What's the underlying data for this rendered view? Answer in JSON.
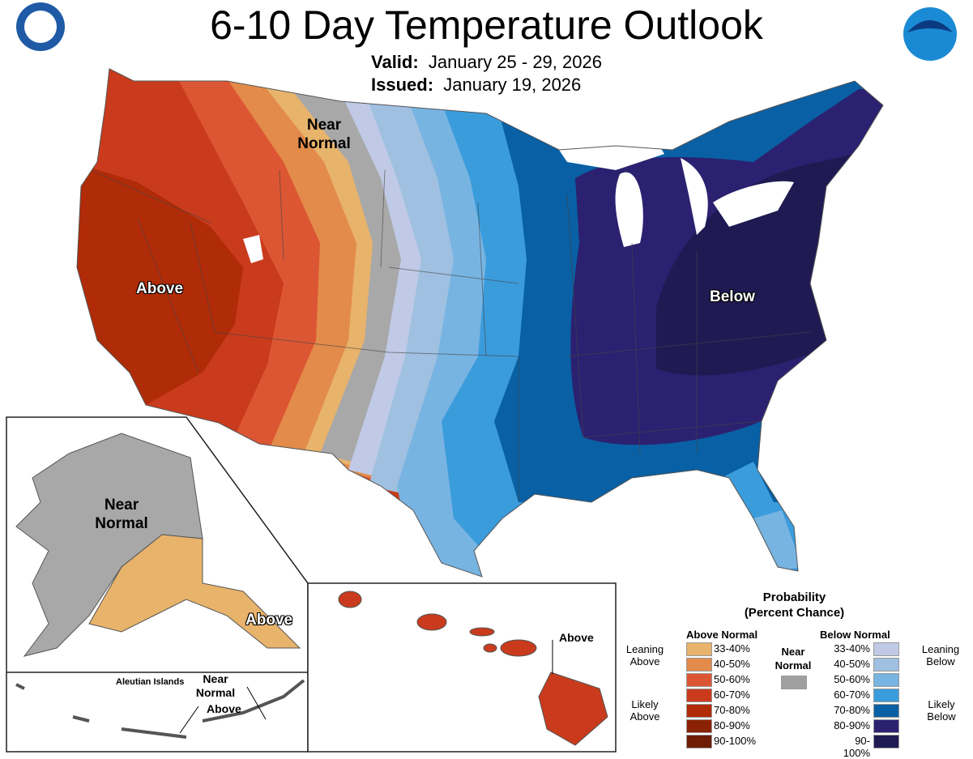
{
  "header": {
    "title": "6-10 Day Temperature Outlook",
    "valid_label": "Valid:",
    "valid_value": "January 25 - 29, 2026",
    "issued_label": "Issued:",
    "issued_value": "January 19, 2026"
  },
  "logos": {
    "left": "Department of Commerce seal",
    "right": "NOAA"
  },
  "map_labels": {
    "near_normal": "Near Normal",
    "above": "Above",
    "below": "Below",
    "alaska_near_normal": "Near Normal",
    "alaska_above": "Above",
    "aleutian": "Aleutian Islands",
    "aleutian_near": "Near Normal",
    "aleutian_above": "Above",
    "hawaii_above": "Above"
  },
  "legend": {
    "title1": "Probability",
    "title2": "(Percent Chance)",
    "above_header": "Above Normal",
    "below_header": "Below Normal",
    "near_header": "Near Normal",
    "leaning_above": "Leaning Above",
    "likely_above": "Likely Above",
    "leaning_below": "Leaning Below",
    "likely_below": "Likely Below",
    "near_color": "#a0a0a0",
    "above": [
      {
        "range": "33-40%",
        "color": "#e8b36b"
      },
      {
        "range": "40-50%",
        "color": "#e38b4a"
      },
      {
        "range": "50-60%",
        "color": "#dc5633"
      },
      {
        "range": "60-70%",
        "color": "#c93b1c"
      },
      {
        "range": "70-80%",
        "color": "#b02b08"
      },
      {
        "range": "80-90%",
        "color": "#8c2205"
      },
      {
        "range": "90-100%",
        "color": "#6e1c04"
      }
    ],
    "below": [
      {
        "range": "33-40%",
        "color": "#c0cae6"
      },
      {
        "range": "40-50%",
        "color": "#9fc0e0"
      },
      {
        "range": "50-60%",
        "color": "#78b4e2"
      },
      {
        "range": "60-70%",
        "color": "#3b9cdc"
      },
      {
        "range": "70-80%",
        "color": "#0960a4"
      },
      {
        "range": "80-90%",
        "color": "#2b2170"
      },
      {
        "range": "90-100%",
        "color": "#1f1a52"
      }
    ]
  }
}
